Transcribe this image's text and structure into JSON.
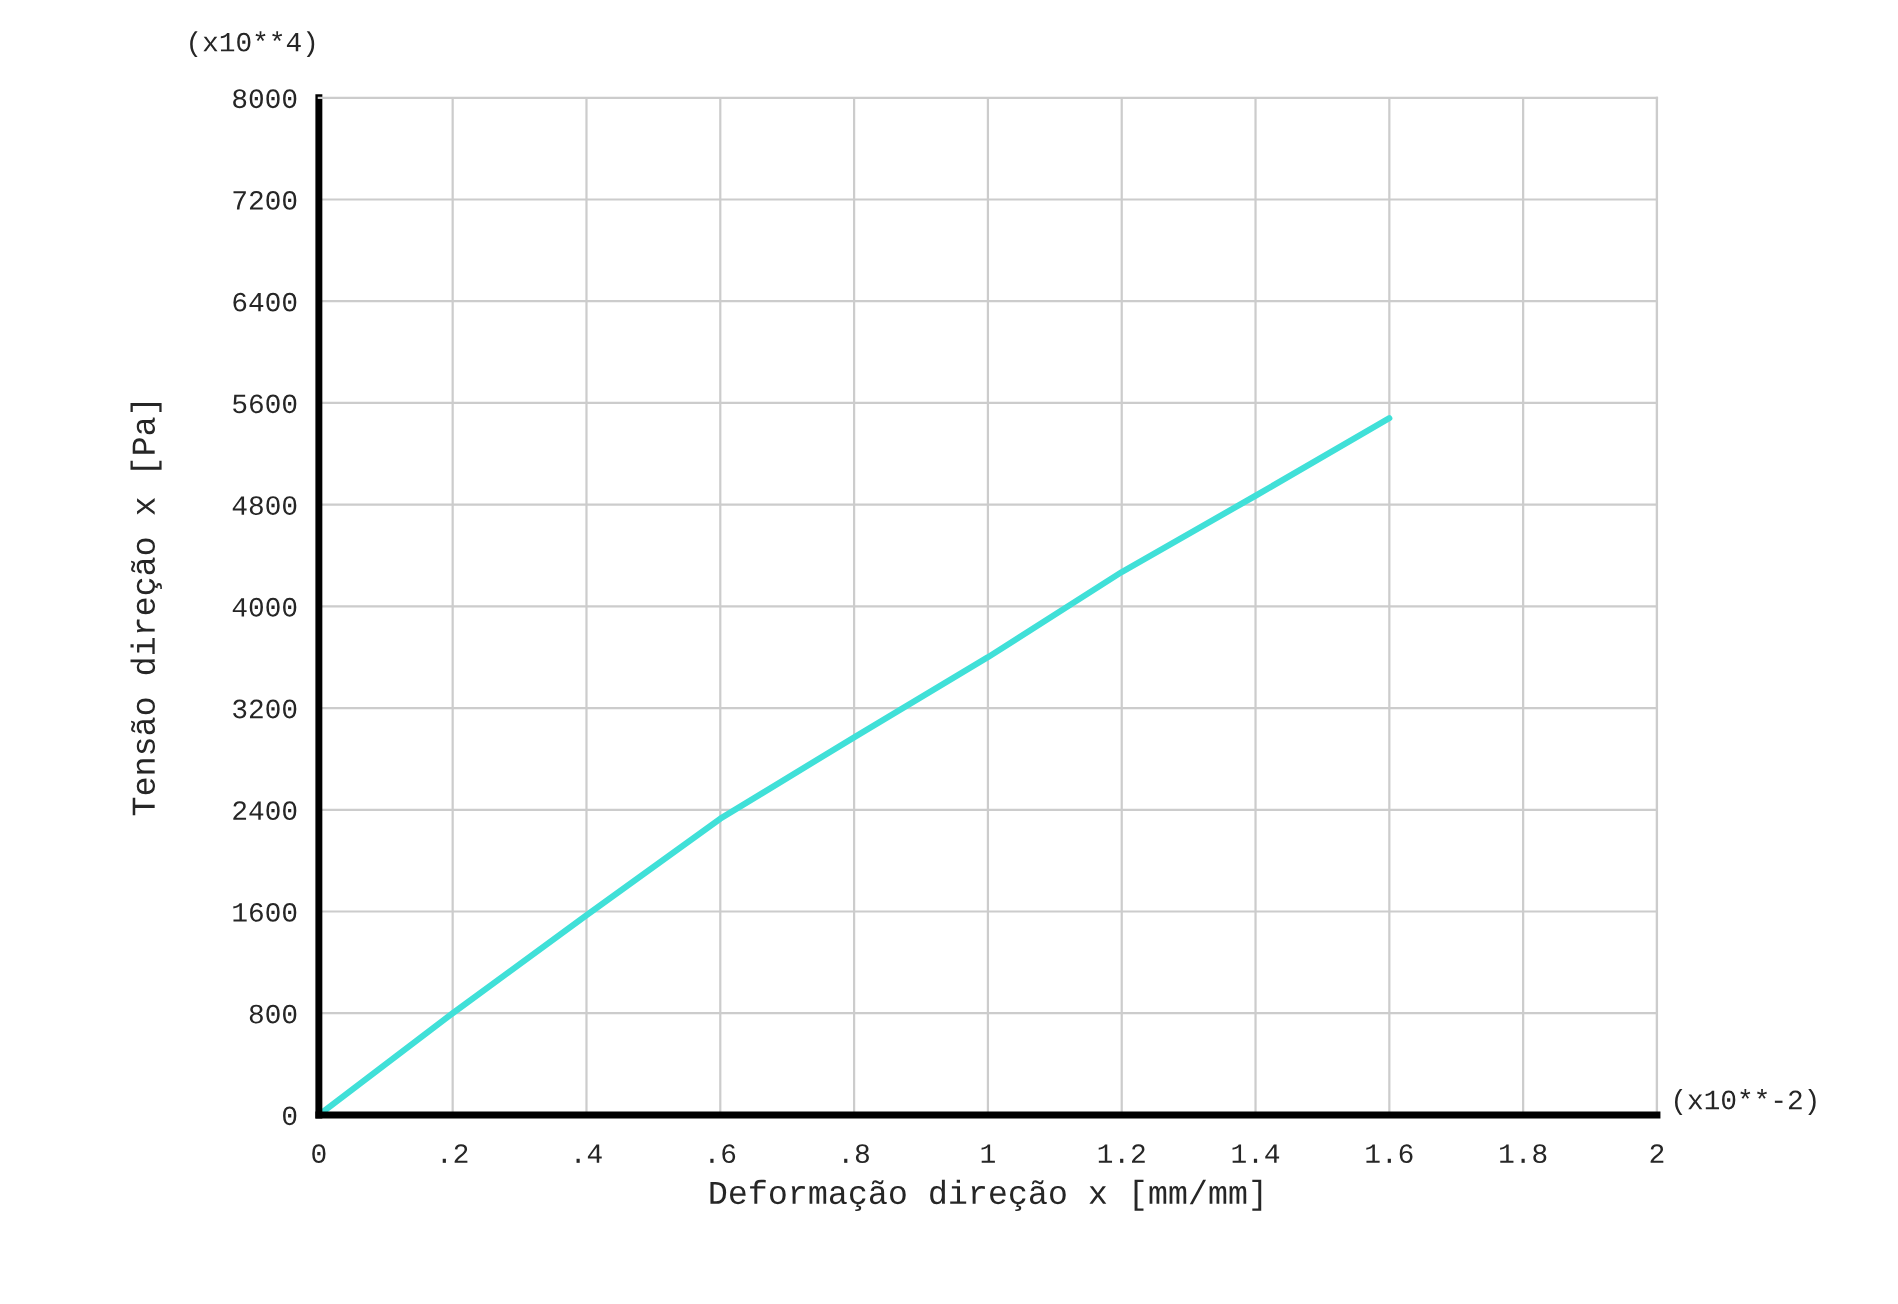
{
  "chart_data": {
    "type": "line",
    "xlabel": "Deformação direção x [mm/mm]",
    "ylabel": "Tensão direção x [Pa]",
    "annotations": [
      "(x10**4)",
      "(x10**-2)"
    ],
    "series": [
      {
        "color": "#40e0d8",
        "x": [
          0,
          0.2,
          0.4,
          0.6,
          0.8,
          1.0,
          1.2,
          1.4,
          1.6
        ],
        "values": [
          0,
          800,
          1570,
          2330,
          2970,
          3600,
          4270,
          4870,
          5480
        ]
      }
    ],
    "xlim": [
      0,
      2
    ],
    "ylim": [
      0,
      8000
    ],
    "xticks": [
      0,
      {
        "value": 0.2,
        "label": ".2"
      },
      {
        "value": 0.4,
        "label": ".4"
      },
      {
        "value": 0.6,
        "label": ".6"
      },
      {
        "value": 0.8,
        "label": ".8"
      },
      1,
      {
        "value": 1.2,
        "label": "1.2"
      },
      {
        "value": 1.4,
        "label": "1.4"
      },
      {
        "value": 1.6,
        "label": "1.6"
      },
      {
        "value": 1.8,
        "label": "1.8"
      },
      2
    ],
    "yticks": [
      0,
      800,
      1600,
      2400,
      3200,
      4000,
      4800,
      5600,
      6400,
      7200,
      8000
    ],
    "grid": true,
    "marker": "none",
    "line_style": "solid"
  }
}
